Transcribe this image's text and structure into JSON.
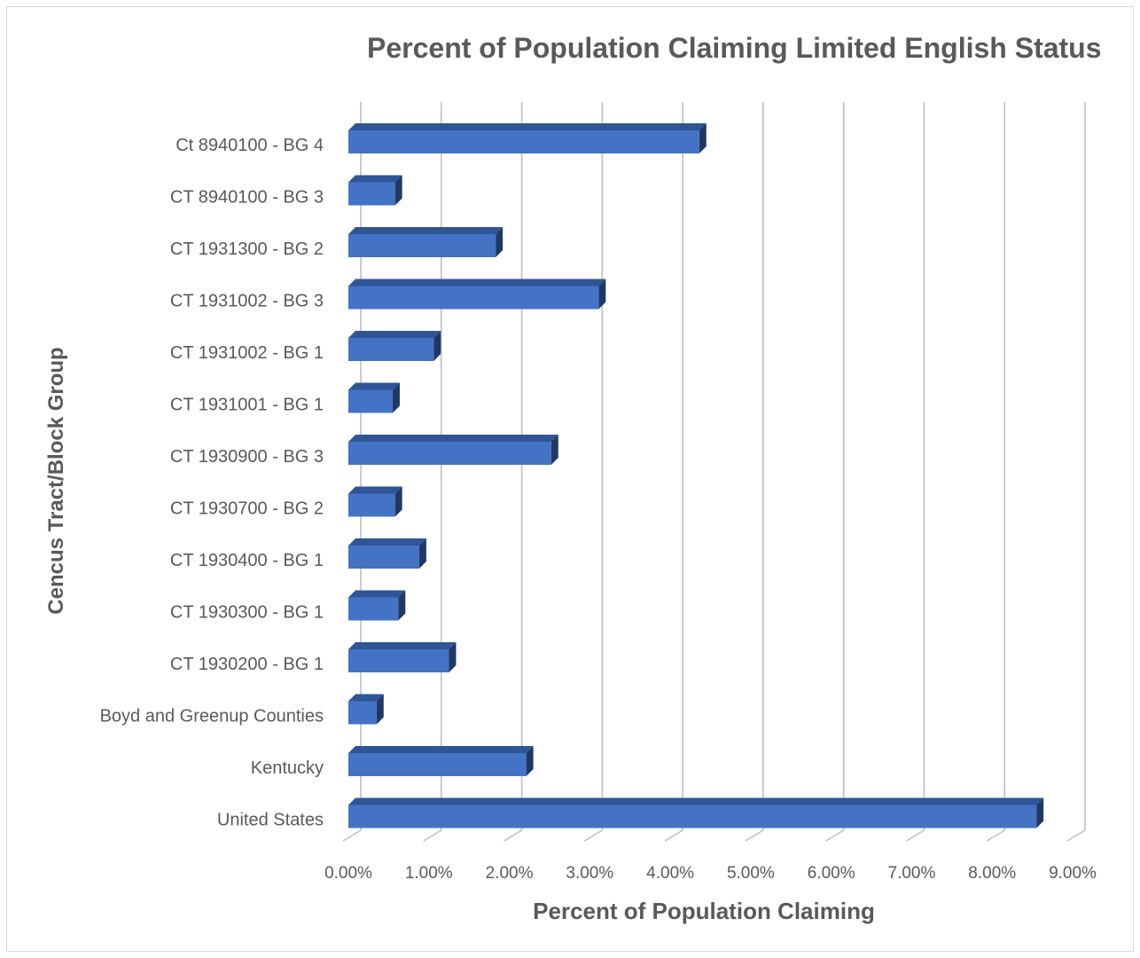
{
  "chart_data": {
    "type": "bar",
    "orientation": "horizontal",
    "title": "Percent of Population Claiming Limited English Status",
    "xlabel": "Percent of Population Claiming",
    "ylabel": "Cencus Tract/Block Group",
    "xlim": [
      0,
      0.09
    ],
    "x_ticks": [
      "0.00%",
      "1.00%",
      "2.00%",
      "3.00%",
      "4.00%",
      "5.00%",
      "6.00%",
      "7.00%",
      "8.00%",
      "9.00%"
    ],
    "grid": true,
    "legend": "none",
    "categories": [
      "Ct 8940100 - BG 4",
      "CT 8940100 - BG 3",
      "CT 1931300 - BG 2",
      "CT 1931002 - BG 3",
      "CT 1931002 - BG 1",
      "CT 1931001 - BG 1",
      "CT 1930900 - BG 3",
      "CT 1930700 - BG 2",
      "CT 1930400 - BG 1",
      "CT 1930300 - BG 1",
      "CT 1930200 - BG 1",
      "Boyd and Greenup Counties",
      "Kentucky",
      "United States"
    ],
    "values": [
      0.0436,
      0.0058,
      0.0183,
      0.0311,
      0.0106,
      0.0055,
      0.0252,
      0.0058,
      0.0088,
      0.0062,
      0.0125,
      0.0035,
      0.0221,
      0.0855
    ],
    "colors": {
      "bar_face": "#4472c4",
      "bar_top": "#2f5597",
      "bar_side": "#203864",
      "grid": "#bfbfbf",
      "text": "#595959"
    }
  }
}
